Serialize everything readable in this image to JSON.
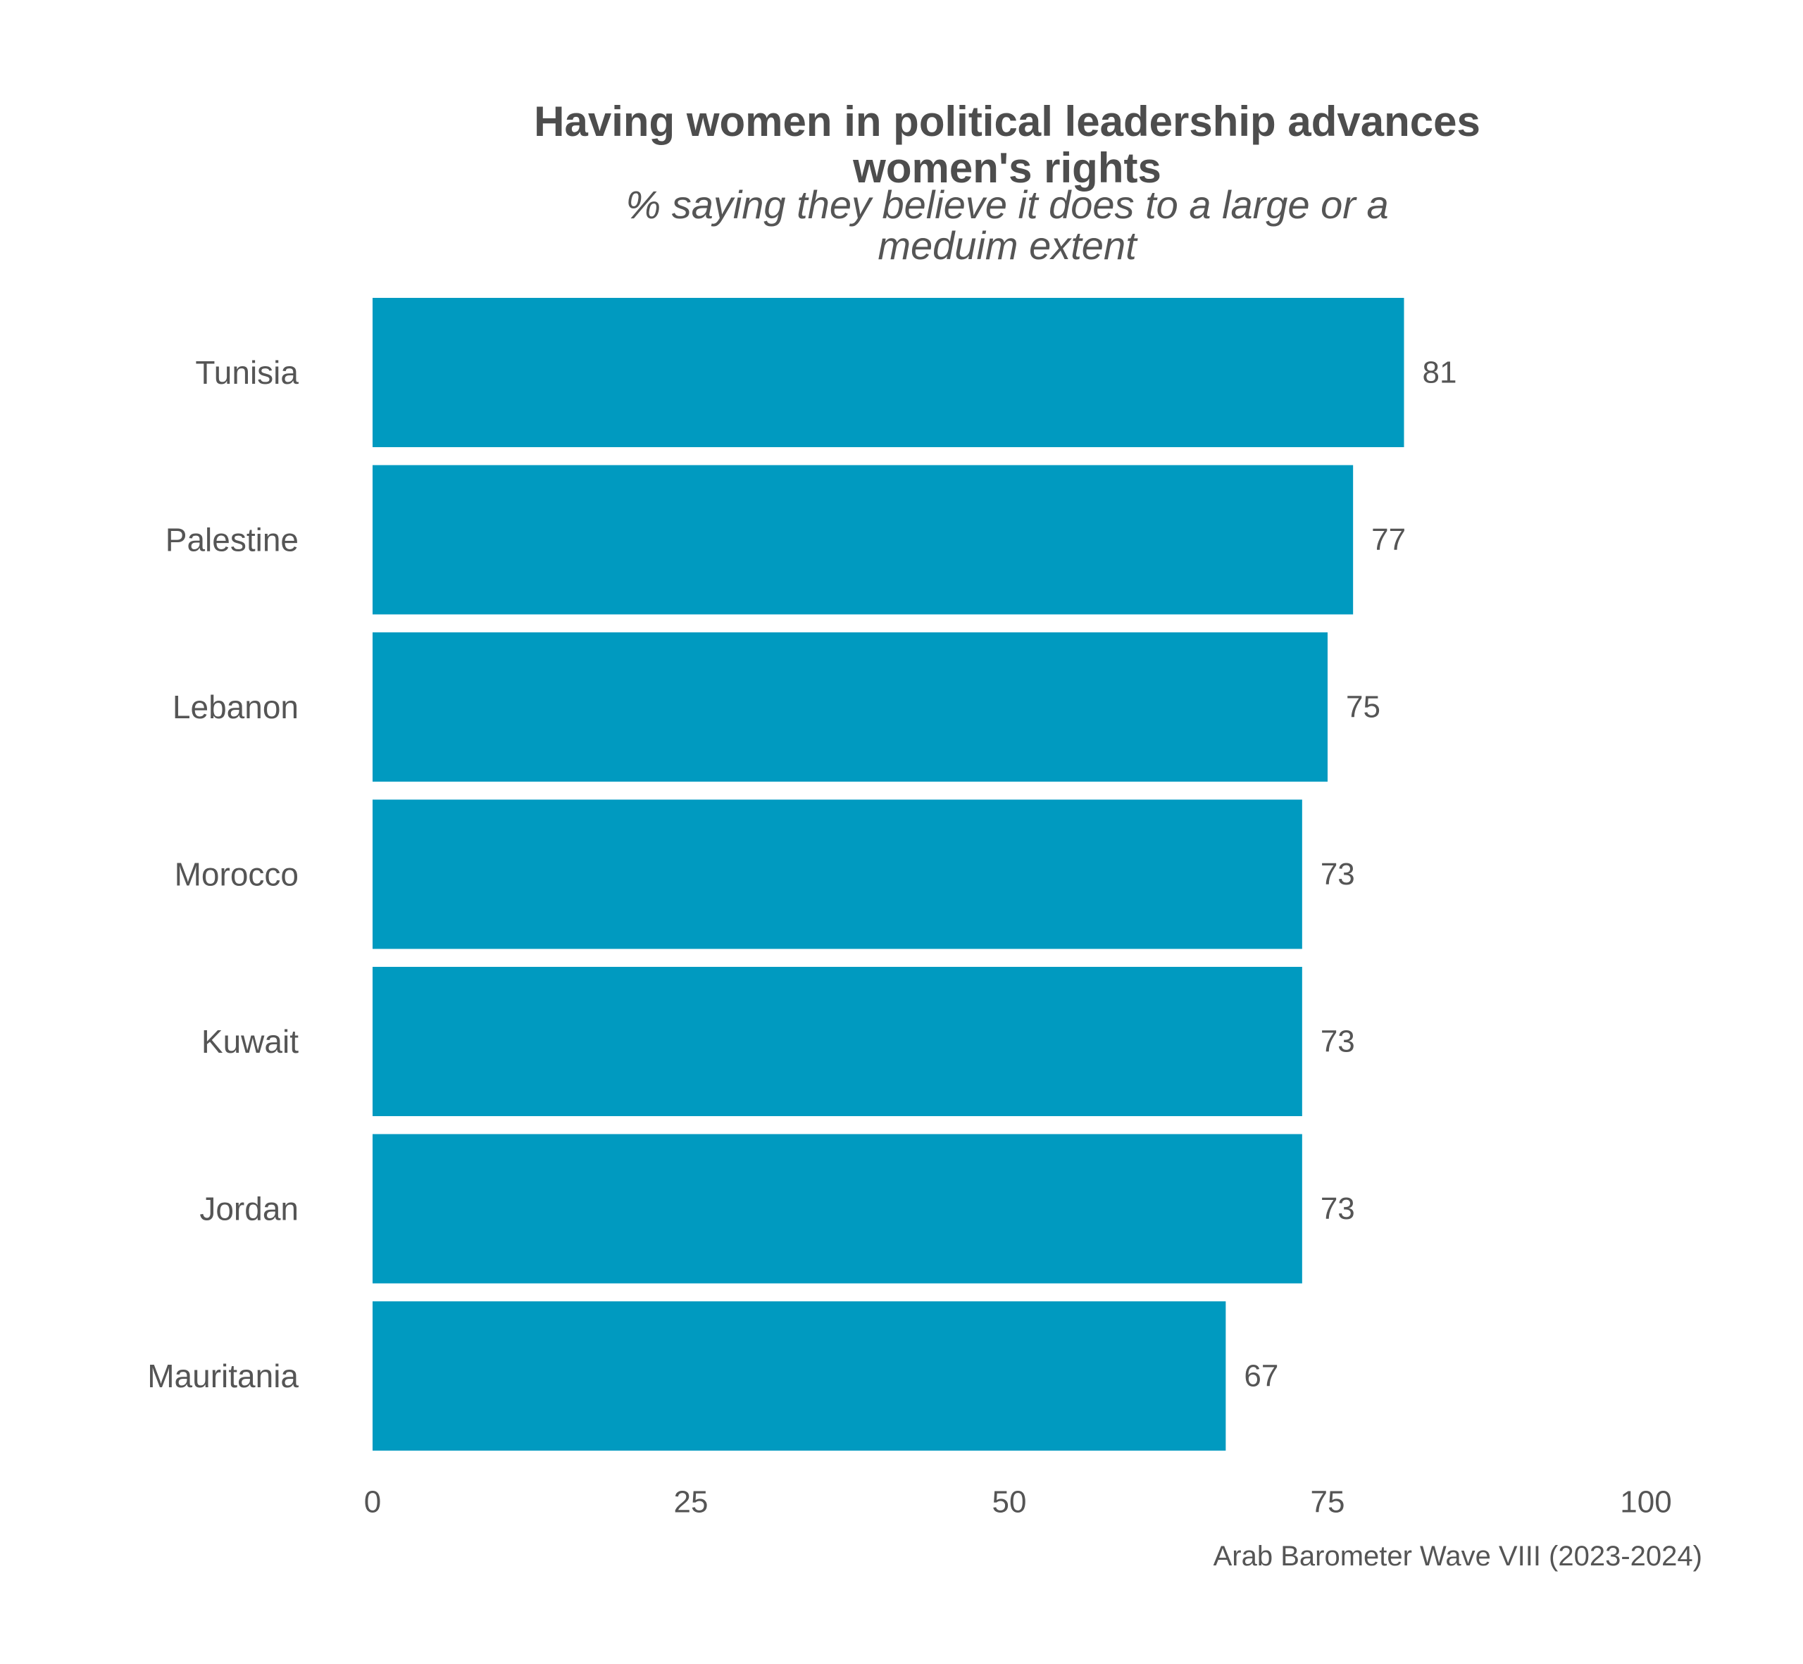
{
  "chart_data": {
    "type": "bar",
    "orientation": "horizontal",
    "title_lines": [
      "Having women in political leadership advances",
      "women's rights"
    ],
    "subtitle_lines": [
      "% saying they believe it does to a large or a",
      "meduim extent"
    ],
    "categories": [
      "Tunisia",
      "Palestine",
      "Lebanon",
      "Morocco",
      "Kuwait",
      "Jordan",
      "Mauritania"
    ],
    "values": [
      81,
      77,
      75,
      73,
      73,
      73,
      67
    ],
    "data_labels": [
      "81",
      "77",
      "75",
      "73",
      "73",
      "73",
      "67"
    ],
    "x_ticks": [
      0,
      25,
      50,
      75,
      100
    ],
    "x_tick_labels": [
      "0",
      "25",
      "50",
      "75",
      "100"
    ],
    "xlim": [
      0,
      100
    ],
    "xlabel": "",
    "ylabel": "",
    "grid": false,
    "legend": "none",
    "bar_color": "#009ac0",
    "caption": "Arab Barometer Wave VIII (2023-2024)"
  }
}
